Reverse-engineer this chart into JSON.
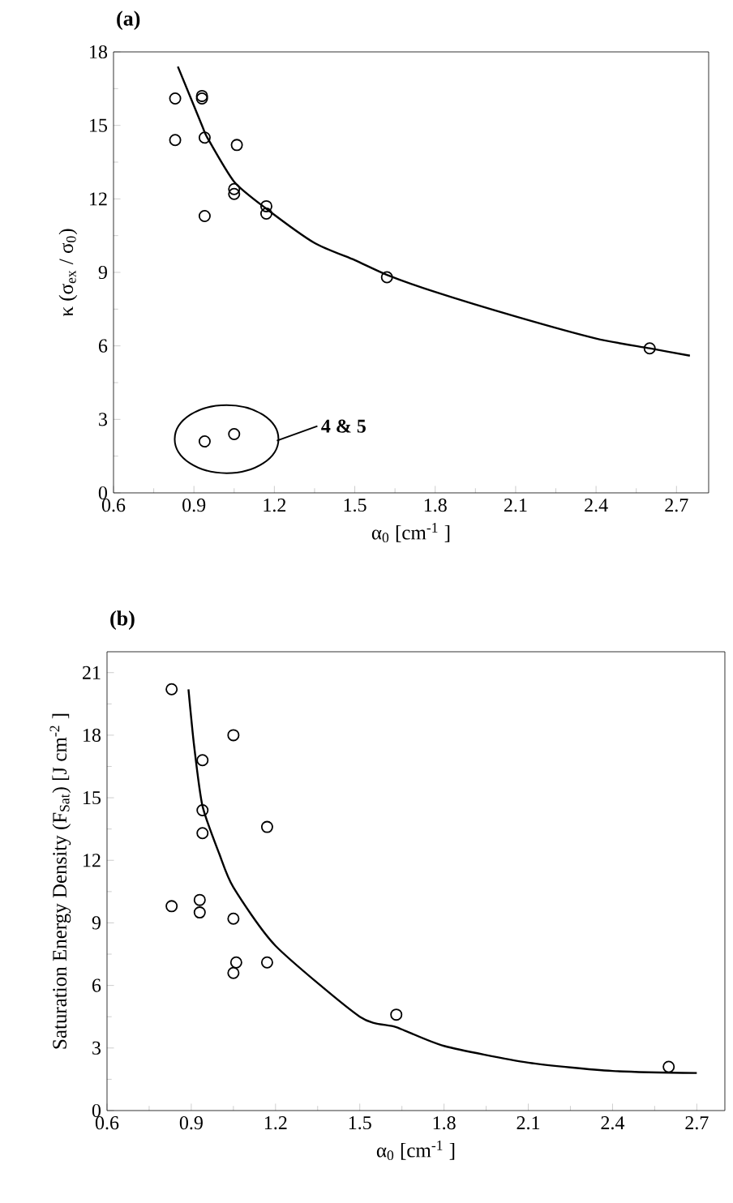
{
  "chart_data": [
    {
      "type": "scatter",
      "title": "(a)",
      "xlabel": "α$_{0}$ [cm$^{-1}$ ]",
      "ylabel": "κ (σ$_{ex}$ / σ$_{0}$)",
      "xlim": [
        0.6,
        2.82
      ],
      "xticks": [
        0.6,
        0.9,
        1.2,
        1.5,
        1.8,
        2.1,
        2.4,
        2.7
      ],
      "ylim": [
        0,
        18
      ],
      "yticks": [
        0,
        3,
        6,
        9,
        12,
        15,
        18
      ],
      "marker": "circle",
      "annotations": [
        "4 & 5"
      ],
      "series": [
        {
          "type": "scatter",
          "color": "#000000",
          "x": [
            0.83,
            0.83,
            0.93,
            0.93,
            0.94,
            0.94,
            1.06,
            1.05,
            1.05,
            1.17,
            1.17,
            1.62,
            2.6,
            0.94,
            1.05
          ],
          "values": [
            16.1,
            14.4,
            16.2,
            16.1,
            14.5,
            11.3,
            14.2,
            12.4,
            12.2,
            11.7,
            11.4,
            8.8,
            5.9,
            2.1,
            2.4
          ]
        },
        {
          "type": "line",
          "color": "#000000",
          "marker": "none",
          "line_style": "solid",
          "x": [
            0.84,
            0.93,
            0.95,
            1.05,
            1.17,
            1.35,
            1.5,
            1.62,
            1.8,
            2.1,
            2.4,
            2.6,
            2.75
          ],
          "values": [
            17.4,
            15.0,
            14.5,
            12.7,
            11.6,
            10.2,
            9.5,
            8.9,
            8.2,
            7.2,
            6.3,
            5.9,
            5.6
          ]
        }
      ]
    },
    {
      "type": "scatter",
      "title": "(b)",
      "xlabel": "α$_{0}$ [cm$^{-1}$ ]",
      "ylabel": "Saturation Energy Density (F$_{Sat}$) [J cm$^{-2}$ ]",
      "xlim": [
        0.6,
        2.8
      ],
      "xticks": [
        0.6,
        0.9,
        1.2,
        1.5,
        1.8,
        2.1,
        2.4,
        2.7
      ],
      "ylim": [
        0,
        22
      ],
      "yticks": [
        0,
        3,
        6,
        9,
        12,
        15,
        18,
        21
      ],
      "marker": "circle",
      "series": [
        {
          "type": "scatter",
          "color": "#000000",
          "x": [
            0.83,
            0.83,
            0.93,
            0.93,
            0.94,
            0.94,
            0.94,
            1.05,
            1.05,
            1.05,
            1.06,
            1.17,
            1.17,
            1.63,
            2.6
          ],
          "values": [
            20.2,
            9.8,
            10.1,
            9.5,
            16.8,
            14.4,
            13.3,
            18.0,
            9.2,
            6.6,
            7.1,
            13.6,
            7.1,
            4.6,
            2.1
          ]
        },
        {
          "type": "line",
          "color": "#000000",
          "marker": "none",
          "line_style": "solid",
          "x": [
            0.89,
            0.91,
            0.94,
            1.0,
            1.05,
            1.2,
            1.5,
            1.63,
            1.8,
            2.1,
            2.4,
            2.7
          ],
          "values": [
            20.2,
            17.5,
            14.6,
            12.3,
            10.7,
            7.9,
            4.5,
            4.0,
            3.1,
            2.3,
            1.9,
            1.8
          ]
        }
      ]
    }
  ]
}
